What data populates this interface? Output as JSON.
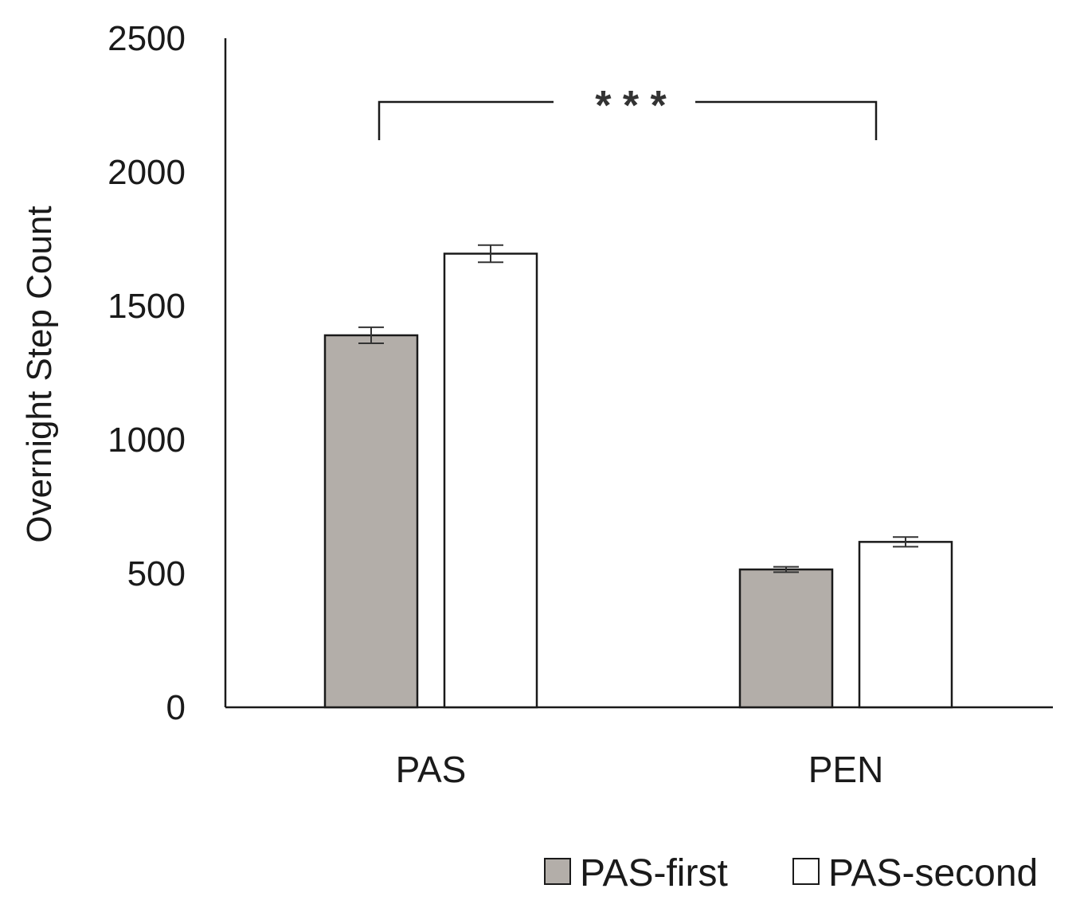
{
  "chart_data": {
    "type": "bar",
    "ylabel": "Overnight Step Count",
    "xlabel": "",
    "ylim": [
      0,
      2500
    ],
    "yticks": [
      0,
      500,
      1000,
      1500,
      2000,
      2500
    ],
    "yticks_labels": [
      "0",
      "500",
      "1000",
      "1500",
      "2000",
      "2500"
    ],
    "categories": [
      "PAS",
      "PEN"
    ],
    "series": [
      {
        "name": "PAS-first",
        "values": [
          1390,
          515
        ],
        "errors": [
          30,
          10
        ],
        "color": "#b3aea9"
      },
      {
        "name": "PAS-second",
        "values": [
          1695,
          618
        ],
        "errors": [
          32,
          18
        ],
        "color": "#ffffff"
      }
    ],
    "annotation": {
      "text": "* * *",
      "between": [
        "PAS",
        "PEN"
      ],
      "y": 2270
    },
    "legend": "bottom-right",
    "grid": false
  }
}
